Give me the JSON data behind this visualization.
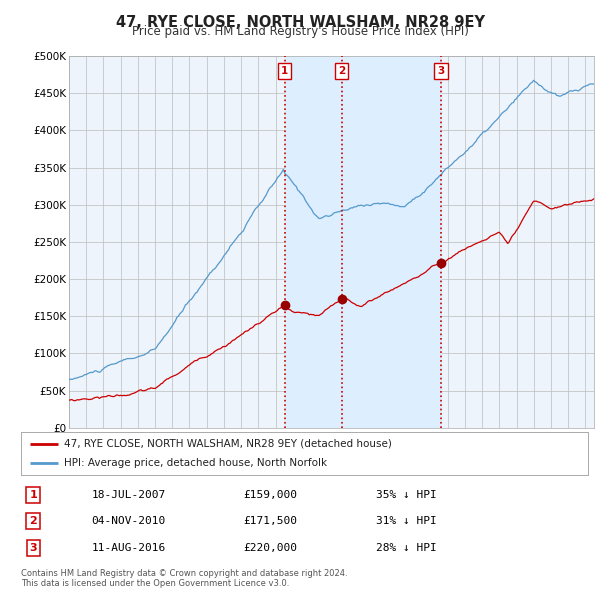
{
  "title": "47, RYE CLOSE, NORTH WALSHAM, NR28 9EY",
  "subtitle": "Price paid vs. HM Land Registry's House Price Index (HPI)",
  "legend_line1": "47, RYE CLOSE, NORTH WALSHAM, NR28 9EY (detached house)",
  "legend_line2": "HPI: Average price, detached house, North Norfolk",
  "red_line_color": "#cc0000",
  "blue_line_color": "#5599cc",
  "shade_color": "#ddeeff",
  "transaction_color": "#cc0000",
  "grid_color": "#cccccc",
  "background_color": "#ffffff",
  "plot_bg_color": "#eef4fb",
  "transactions": [
    {
      "num": 1,
      "date_dec": 2007.54,
      "date_str": "18-JUL-2007",
      "price": 159000,
      "price_str": "£159,000",
      "pct": "35%"
    },
    {
      "num": 2,
      "date_dec": 2010.84,
      "date_str": "04-NOV-2010",
      "price": 171500,
      "price_str": "£171,500",
      "pct": "31%"
    },
    {
      "num": 3,
      "date_dec": 2016.61,
      "date_str": "11-AUG-2016",
      "price": 220000,
      "price_str": "£220,000",
      "pct": "28%"
    }
  ],
  "footnote": "Contains HM Land Registry data © Crown copyright and database right 2024.\nThis data is licensed under the Open Government Licence v3.0.",
  "ylim": [
    0,
    500000
  ],
  "xlim_start": 1995.0,
  "xlim_end": 2025.5
}
